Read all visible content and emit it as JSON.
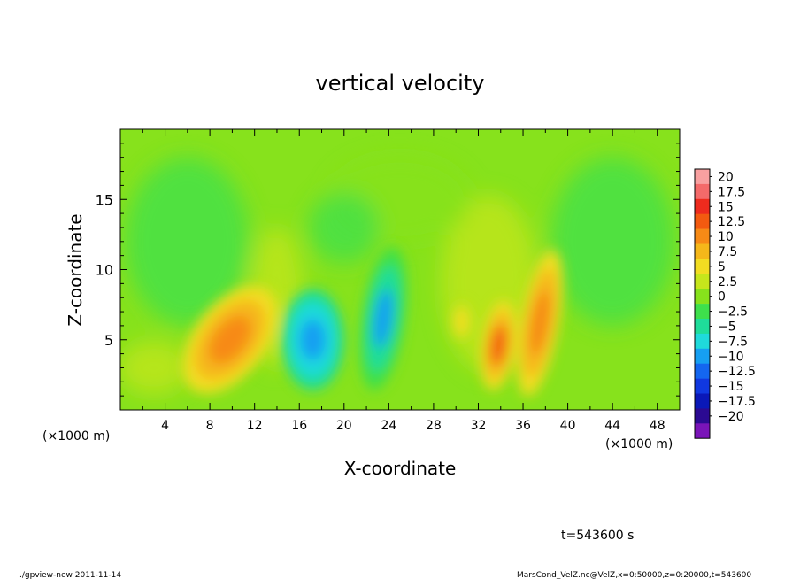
{
  "chart_data": {
    "type": "heatmap",
    "title": "vertical velocity",
    "xlabel": "X-coordinate",
    "ylabel": "Z-coordinate",
    "x_unit_label": "(×1000 m)",
    "x_unit_label_right": "(×1000 m)",
    "xlim": [
      0,
      50
    ],
    "ylim": [
      0,
      20
    ],
    "x_ticks": [
      "4",
      "8",
      "12",
      "16",
      "20",
      "24",
      "28",
      "32",
      "36",
      "40",
      "44",
      "48"
    ],
    "x_tick_values": [
      4,
      8,
      12,
      16,
      20,
      24,
      28,
      32,
      36,
      40,
      44,
      48
    ],
    "y_ticks": [
      "5",
      "10",
      "15"
    ],
    "y_tick_values": [
      5,
      10,
      15
    ],
    "colorbar": {
      "levels": [
        "20",
        "17.5",
        "15",
        "12.5",
        "10",
        "7.5",
        "5",
        "2.5",
        "0",
        "−2.5",
        "−5",
        "−7.5",
        "−10",
        "−12.5",
        "−15",
        "−17.5",
        "−20"
      ],
      "colors": [
        "#f8a0a0",
        "#f46a6a",
        "#ee2b1e",
        "#f35a10",
        "#f78a16",
        "#f5b71a",
        "#f2dd22",
        "#c6e61c",
        "#87e21c",
        "#3ee04c",
        "#1fdd9a",
        "#1fdadb",
        "#169ff2",
        "#1466f0",
        "#1038e0",
        "#0a18b8",
        "#2b0a92",
        "#7a14b8"
      ]
    },
    "features": [
      {
        "kind": "updraft",
        "x": 9.8,
        "z": 5.0,
        "w": 11
      },
      {
        "kind": "downdraft",
        "x": 17.2,
        "z": 5.0,
        "w": -11
      },
      {
        "kind": "downdraft",
        "x": 23.5,
        "z": 6.5,
        "w": -9
      },
      {
        "kind": "updraft",
        "x": 30.5,
        "z": 6.3,
        "w": 6
      },
      {
        "kind": "updraft",
        "x": 33.8,
        "z": 4.6,
        "w": 12
      },
      {
        "kind": "updraft",
        "x": 37.5,
        "z": 6.2,
        "w": 11
      }
    ]
  },
  "annotations": {
    "time": "t=543600 s",
    "footer_left": "./gpview-new  2011-11-14",
    "footer_right": "MarsCond_VelZ.nc@VelZ,x=0:50000,z=0:20000,t=543600"
  }
}
